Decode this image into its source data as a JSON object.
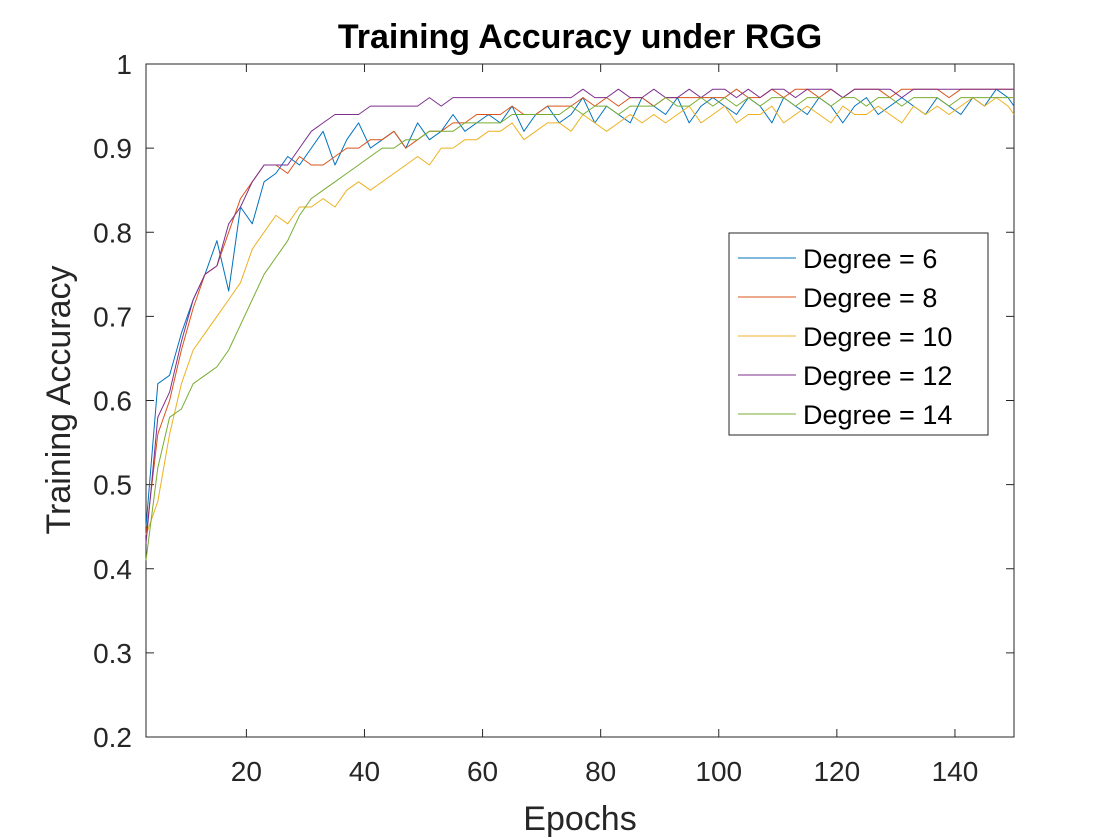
{
  "chart_data": {
    "type": "line",
    "title": "Training Accuracy under RGG",
    "xlabel": "Epochs",
    "ylabel": "Training Accuracy",
    "xlim": [
      3,
      150
    ],
    "ylim": [
      0.2,
      1
    ],
    "xticks": [
      20,
      40,
      60,
      80,
      100,
      120,
      140
    ],
    "yticks": [
      0.2,
      0.3,
      0.4,
      0.5,
      0.6,
      0.7,
      0.8,
      0.9,
      1
    ],
    "ytick_labels": [
      "0.2",
      "0.3",
      "0.4",
      "0.5",
      "0.6",
      "0.7",
      "0.8",
      "0.9",
      "1"
    ],
    "grid": false,
    "legend_position": "right, upper-middle",
    "x": [
      3,
      5,
      7,
      9,
      11,
      13,
      15,
      17,
      19,
      21,
      23,
      25,
      27,
      29,
      31,
      33,
      35,
      37,
      39,
      41,
      43,
      45,
      47,
      49,
      51,
      53,
      55,
      57,
      59,
      61,
      63,
      65,
      67,
      69,
      71,
      73,
      75,
      77,
      79,
      81,
      83,
      85,
      87,
      89,
      91,
      93,
      95,
      97,
      99,
      101,
      103,
      105,
      107,
      109,
      111,
      113,
      115,
      117,
      119,
      121,
      123,
      125,
      127,
      129,
      131,
      133,
      135,
      137,
      139,
      141,
      143,
      145,
      147,
      149,
      150
    ],
    "series": [
      {
        "name": "Degree = 6",
        "color": "#0072BD",
        "values": [
          0.45,
          0.62,
          0.63,
          0.68,
          0.72,
          0.75,
          0.79,
          0.73,
          0.83,
          0.81,
          0.86,
          0.87,
          0.89,
          0.88,
          0.9,
          0.92,
          0.88,
          0.91,
          0.93,
          0.9,
          0.91,
          0.92,
          0.9,
          0.93,
          0.91,
          0.92,
          0.94,
          0.92,
          0.93,
          0.94,
          0.93,
          0.95,
          0.92,
          0.94,
          0.95,
          0.93,
          0.94,
          0.96,
          0.93,
          0.95,
          0.94,
          0.93,
          0.96,
          0.95,
          0.94,
          0.96,
          0.93,
          0.95,
          0.96,
          0.95,
          0.94,
          0.96,
          0.95,
          0.93,
          0.96,
          0.95,
          0.94,
          0.96,
          0.95,
          0.93,
          0.95,
          0.96,
          0.94,
          0.95,
          0.96,
          0.95,
          0.94,
          0.96,
          0.95,
          0.94,
          0.96,
          0.95,
          0.97,
          0.96,
          0.95
        ]
      },
      {
        "name": "Degree = 8",
        "color": "#D95319",
        "values": [
          0.44,
          0.56,
          0.6,
          0.66,
          0.71,
          0.75,
          0.76,
          0.8,
          0.84,
          0.86,
          0.88,
          0.88,
          0.87,
          0.89,
          0.88,
          0.88,
          0.89,
          0.9,
          0.9,
          0.91,
          0.91,
          0.92,
          0.9,
          0.91,
          0.92,
          0.92,
          0.93,
          0.93,
          0.94,
          0.94,
          0.94,
          0.95,
          0.94,
          0.94,
          0.95,
          0.95,
          0.95,
          0.96,
          0.95,
          0.96,
          0.95,
          0.96,
          0.96,
          0.95,
          0.96,
          0.96,
          0.96,
          0.96,
          0.96,
          0.96,
          0.97,
          0.96,
          0.96,
          0.97,
          0.96,
          0.97,
          0.97,
          0.96,
          0.97,
          0.96,
          0.97,
          0.97,
          0.97,
          0.96,
          0.97,
          0.97,
          0.97,
          0.97,
          0.96,
          0.97,
          0.97,
          0.97,
          0.97,
          0.97,
          0.97
        ]
      },
      {
        "name": "Degree = 10",
        "color": "#EDB120",
        "values": [
          0.44,
          0.48,
          0.56,
          0.62,
          0.66,
          0.68,
          0.7,
          0.72,
          0.74,
          0.78,
          0.8,
          0.82,
          0.81,
          0.83,
          0.83,
          0.84,
          0.83,
          0.85,
          0.86,
          0.85,
          0.86,
          0.87,
          0.88,
          0.89,
          0.88,
          0.9,
          0.9,
          0.91,
          0.91,
          0.92,
          0.92,
          0.93,
          0.91,
          0.92,
          0.93,
          0.93,
          0.92,
          0.94,
          0.93,
          0.92,
          0.93,
          0.94,
          0.93,
          0.94,
          0.93,
          0.94,
          0.95,
          0.93,
          0.94,
          0.95,
          0.93,
          0.94,
          0.94,
          0.95,
          0.93,
          0.94,
          0.95,
          0.94,
          0.93,
          0.95,
          0.94,
          0.94,
          0.95,
          0.94,
          0.93,
          0.95,
          0.94,
          0.95,
          0.94,
          0.95,
          0.96,
          0.95,
          0.96,
          0.95,
          0.94
        ]
      },
      {
        "name": "Degree = 12",
        "color": "#7E2F8E",
        "values": [
          0.43,
          0.58,
          0.61,
          0.67,
          0.72,
          0.75,
          0.76,
          0.81,
          0.83,
          0.86,
          0.88,
          0.88,
          0.88,
          0.9,
          0.92,
          0.93,
          0.94,
          0.94,
          0.94,
          0.95,
          0.95,
          0.95,
          0.95,
          0.95,
          0.96,
          0.95,
          0.96,
          0.96,
          0.96,
          0.96,
          0.96,
          0.96,
          0.96,
          0.96,
          0.96,
          0.96,
          0.96,
          0.97,
          0.96,
          0.96,
          0.97,
          0.96,
          0.96,
          0.97,
          0.96,
          0.96,
          0.97,
          0.96,
          0.97,
          0.97,
          0.96,
          0.97,
          0.96,
          0.97,
          0.97,
          0.96,
          0.97,
          0.97,
          0.97,
          0.96,
          0.97,
          0.97,
          0.97,
          0.97,
          0.96,
          0.97,
          0.97,
          0.97,
          0.97,
          0.97,
          0.97,
          0.97,
          0.97,
          0.97,
          0.97
        ]
      },
      {
        "name": "Degree = 14",
        "color": "#77AC30",
        "values": [
          0.41,
          0.52,
          0.58,
          0.59,
          0.62,
          0.63,
          0.64,
          0.66,
          0.69,
          0.72,
          0.75,
          0.77,
          0.79,
          0.82,
          0.84,
          0.85,
          0.86,
          0.87,
          0.88,
          0.89,
          0.9,
          0.9,
          0.91,
          0.91,
          0.92,
          0.92,
          0.92,
          0.93,
          0.93,
          0.93,
          0.93,
          0.94,
          0.94,
          0.94,
          0.94,
          0.94,
          0.95,
          0.94,
          0.95,
          0.95,
          0.94,
          0.95,
          0.95,
          0.95,
          0.96,
          0.95,
          0.95,
          0.96,
          0.95,
          0.96,
          0.95,
          0.96,
          0.95,
          0.96,
          0.96,
          0.95,
          0.96,
          0.96,
          0.95,
          0.96,
          0.96,
          0.95,
          0.96,
          0.96,
          0.95,
          0.96,
          0.96,
          0.96,
          0.95,
          0.96,
          0.96,
          0.96,
          0.96,
          0.96,
          0.96
        ]
      }
    ]
  }
}
